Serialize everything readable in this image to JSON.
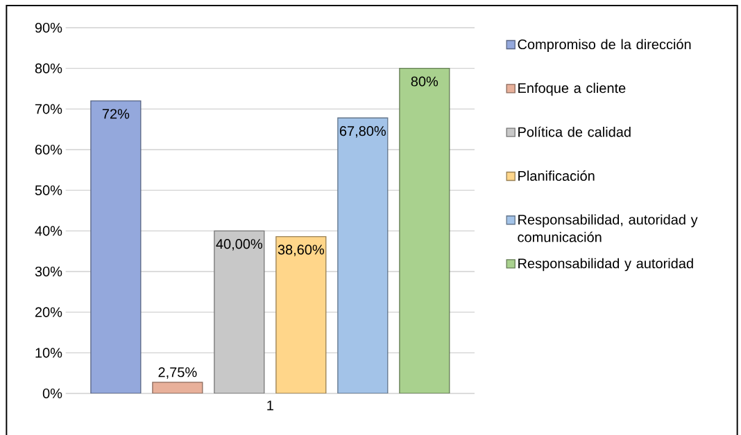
{
  "chart_data": {
    "type": "bar",
    "categories": [
      "1"
    ],
    "series": [
      {
        "name": "Compromiso de la dirección",
        "color": "#94a8dc",
        "values": [
          72
        ],
        "value_labels": [
          "72%"
        ]
      },
      {
        "name": "Enfoque a cliente",
        "color": "#e8b09a",
        "values": [
          2.75
        ],
        "value_labels": [
          "2,75%"
        ]
      },
      {
        "name": "Política de calidad",
        "color": "#c8c8c8",
        "values": [
          40
        ],
        "value_labels": [
          "40,00%"
        ]
      },
      {
        "name": "Planificación",
        "color": "#ffd68a",
        "values": [
          38.6
        ],
        "value_labels": [
          "38,60%"
        ]
      },
      {
        "name": "Responsabilidad, autoridad y comunicación",
        "color": "#a3c3e8",
        "values": [
          67.8
        ],
        "value_labels": [
          "67,80%"
        ]
      },
      {
        "name": "Responsabilidad y autoridad",
        "color": "#a9d18e",
        "values": [
          80
        ],
        "value_labels": [
          "80%"
        ]
      }
    ],
    "ylim": [
      0,
      90
    ],
    "yticks": [
      {
        "value": 0,
        "label": "0%"
      },
      {
        "value": 10,
        "label": "10%"
      },
      {
        "value": 20,
        "label": "20%"
      },
      {
        "value": 30,
        "label": "30%"
      },
      {
        "value": 40,
        "label": "40%"
      },
      {
        "value": 50,
        "label": "50%"
      },
      {
        "value": 60,
        "label": "60%"
      },
      {
        "value": 70,
        "label": "70%"
      },
      {
        "value": 80,
        "label": "80%"
      },
      {
        "value": 90,
        "label": "90%"
      }
    ],
    "grid": "y",
    "legend": "right"
  }
}
